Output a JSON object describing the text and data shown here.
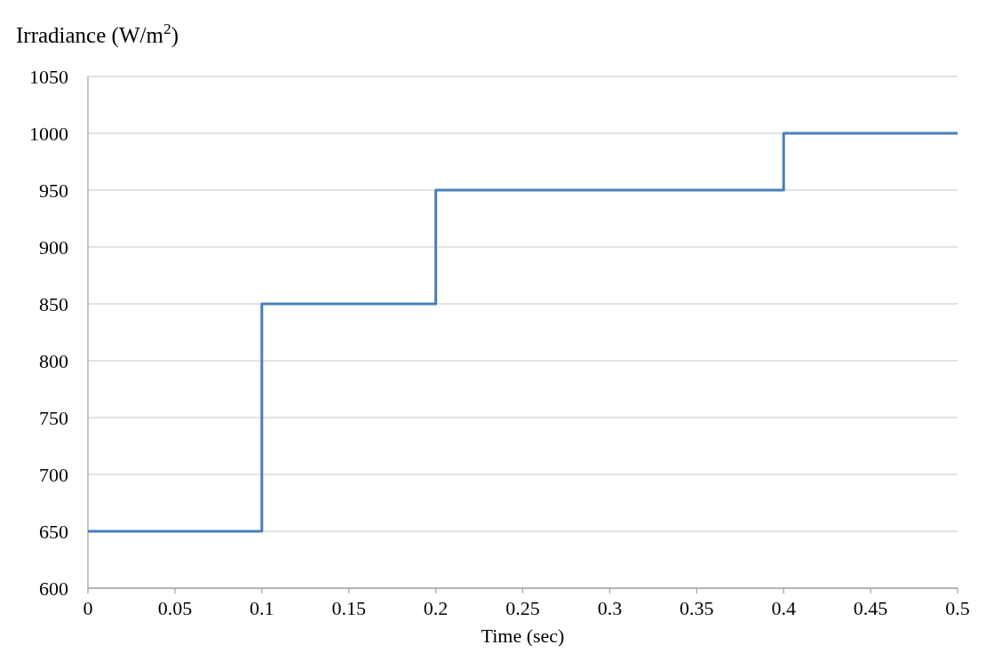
{
  "chart_data": {
    "type": "step",
    "xlabel": "Time (sec)",
    "ylabel": "Irradiance (W/m$^{2}$)",
    "x": [
      0,
      0.1,
      0.2,
      0.4,
      0.5
    ],
    "series": [
      {
        "color": "#4a7ebb",
        "values": [
          650,
          850,
          950,
          1000,
          1000
        ]
      }
    ],
    "xlim": [
      0,
      0.5
    ],
    "xticks": [
      0,
      0.05,
      0.1,
      0.15,
      0.2,
      0.25,
      0.3,
      0.35,
      0.4,
      0.45,
      0.5
    ],
    "ylim": [
      600,
      1050
    ],
    "yticks": [
      600,
      650,
      700,
      750,
      800,
      850,
      900,
      950,
      1000,
      1050
    ],
    "grid": "y",
    "marker": "none",
    "line_style": "solid"
  }
}
